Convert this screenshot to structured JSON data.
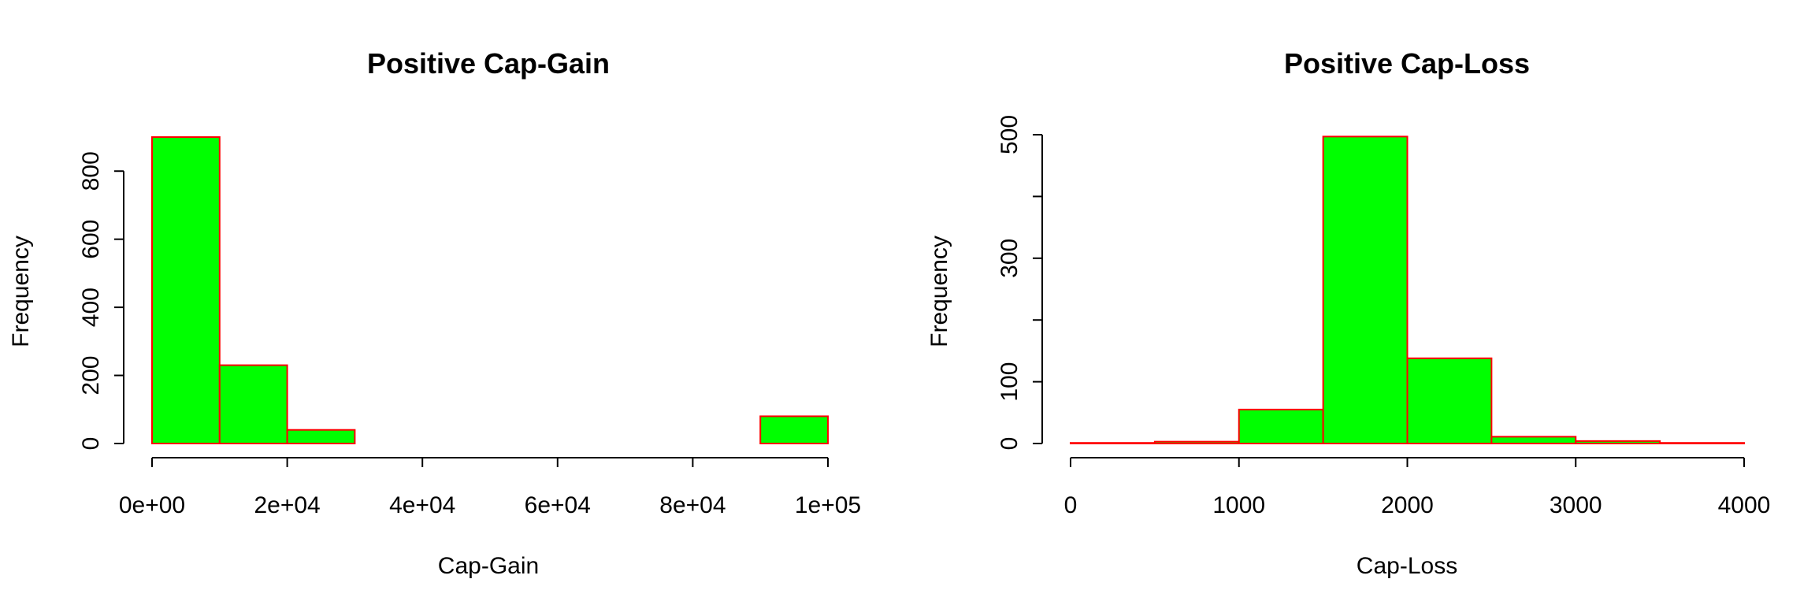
{
  "figure": {
    "background": "#ffffff"
  },
  "chart_data": [
    {
      "type": "bar",
      "subtype": "histogram",
      "title": "Positive Cap-Gain",
      "xlabel": "Cap-Gain",
      "ylabel": "Frequency",
      "bins": [
        {
          "start": 0,
          "end": 10000,
          "count": 900
        },
        {
          "start": 10000,
          "end": 20000,
          "count": 230
        },
        {
          "start": 20000,
          "end": 30000,
          "count": 40
        },
        {
          "start": 30000,
          "end": 40000,
          "count": 0
        },
        {
          "start": 40000,
          "end": 50000,
          "count": 0
        },
        {
          "start": 50000,
          "end": 60000,
          "count": 0
        },
        {
          "start": 60000,
          "end": 70000,
          "count": 0
        },
        {
          "start": 70000,
          "end": 80000,
          "count": 0
        },
        {
          "start": 80000,
          "end": 90000,
          "count": 0
        },
        {
          "start": 90000,
          "end": 100000,
          "count": 80
        }
      ],
      "xlim": [
        0,
        100000
      ],
      "ylim": [
        0,
        900
      ],
      "x_ticks": [
        {
          "value": 0,
          "label": "0e+00"
        },
        {
          "value": 20000,
          "label": "2e+04"
        },
        {
          "value": 40000,
          "label": "4e+04"
        },
        {
          "value": 60000,
          "label": "6e+04"
        },
        {
          "value": 80000,
          "label": "8e+04"
        },
        {
          "value": 100000,
          "label": "1e+05"
        }
      ],
      "y_ticks": [
        {
          "value": 0,
          "label": "0"
        },
        {
          "value": 200,
          "label": "200"
        },
        {
          "value": 400,
          "label": "400"
        },
        {
          "value": 600,
          "label": "600"
        },
        {
          "value": 800,
          "label": "800"
        }
      ],
      "fill_color": "#00ff00",
      "border_color": "#ff0000",
      "grid": false
    },
    {
      "type": "bar",
      "subtype": "histogram",
      "title": "Positive Cap-Loss",
      "xlabel": "Cap-Loss",
      "ylabel": "Frequency",
      "bins": [
        {
          "start": 0,
          "end": 500,
          "count": 1
        },
        {
          "start": 500,
          "end": 1000,
          "count": 3
        },
        {
          "start": 1000,
          "end": 1500,
          "count": 55
        },
        {
          "start": 1500,
          "end": 2000,
          "count": 497
        },
        {
          "start": 2000,
          "end": 2500,
          "count": 138
        },
        {
          "start": 2500,
          "end": 3000,
          "count": 11
        },
        {
          "start": 3000,
          "end": 3500,
          "count": 4
        },
        {
          "start": 3500,
          "end": 4000,
          "count": 1
        }
      ],
      "xlim": [
        0,
        4000
      ],
      "ylim": [
        0,
        500
      ],
      "x_ticks": [
        {
          "value": 0,
          "label": "0"
        },
        {
          "value": 1000,
          "label": "1000"
        },
        {
          "value": 2000,
          "label": "2000"
        },
        {
          "value": 3000,
          "label": "3000"
        },
        {
          "value": 4000,
          "label": "4000"
        }
      ],
      "y_ticks": [
        {
          "value": 0,
          "label": "0"
        },
        {
          "value": 100,
          "label": "100"
        },
        {
          "value": 300,
          "label": "300"
        },
        {
          "value": 500,
          "label": "500"
        }
      ],
      "minor_y_ticks": [
        200,
        400
      ],
      "fill_color": "#00ff00",
      "border_color": "#ff0000",
      "grid": false
    }
  ]
}
